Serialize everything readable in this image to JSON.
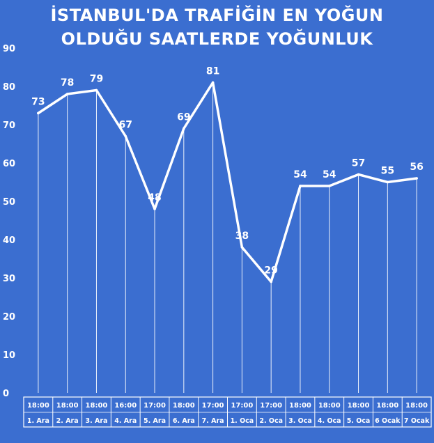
{
  "title": {
    "line1": "İSTANBUL'DA TRAFİĞİN EN YOĞUN",
    "line2": "OLDUĞU SAATLERDE YOĞUNLUK"
  },
  "colors": {
    "background": "#3b6ed0",
    "line": "#ffffff",
    "text": "#ffffff"
  },
  "chart_data": {
    "type": "line",
    "title": "İSTANBUL'DA TRAFİĞİN EN YOĞUN OLDUĞU SAATLERDE YOĞUNLUK",
    "times": [
      "18:00",
      "18:00",
      "18:00",
      "16:00",
      "17:00",
      "18:00",
      "17:00",
      "17:00",
      "17:00",
      "18:00",
      "18:00",
      "18:00",
      "18:00",
      "18:00"
    ],
    "days": [
      "1. Ara",
      "2. Ara",
      "3. Ara",
      "4. Ara",
      "5. Ara",
      "6. Ara",
      "7. Ara",
      "1. Oca",
      "2. Oca",
      "3. Oca",
      "4. Oca",
      "5. Oca",
      "6 Ocak",
      "7 Ocak"
    ],
    "values": [
      73,
      78,
      79,
      67,
      48,
      69,
      81,
      38,
      29,
      54,
      54,
      57,
      55,
      56
    ],
    "yticks": [
      0,
      10,
      20,
      30,
      40,
      50,
      60,
      70,
      80,
      90
    ],
    "ylim": [
      0,
      90
    ],
    "grid": false,
    "legend": "none"
  }
}
